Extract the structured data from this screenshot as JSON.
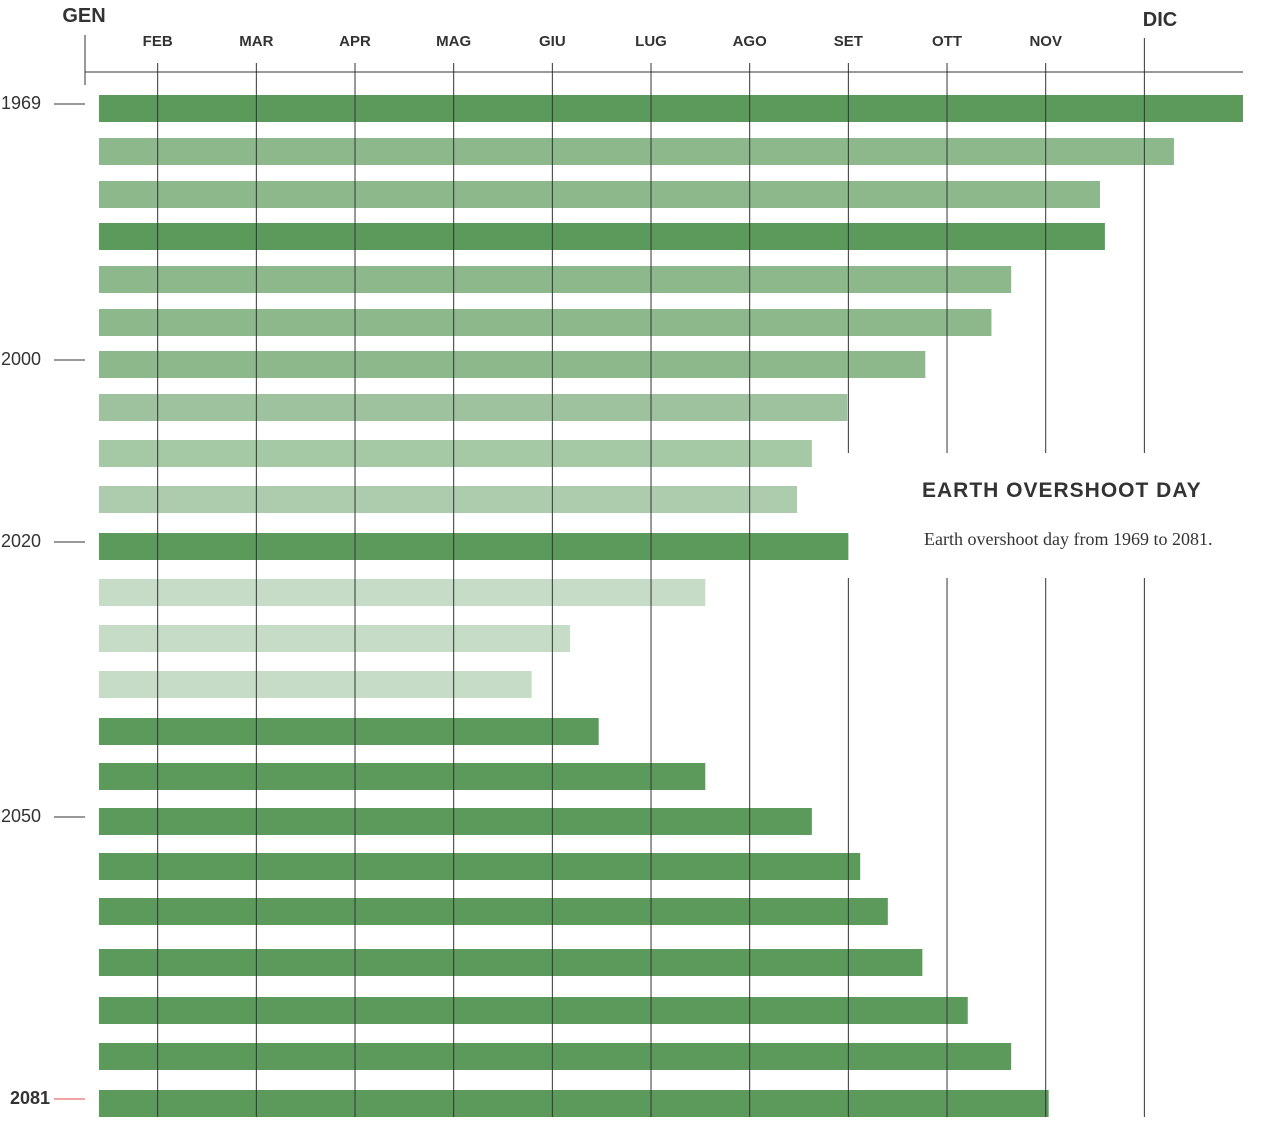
{
  "chart_data": {
    "type": "bar",
    "orientation": "horizontal",
    "title": "EARTH OVERSHOOT DAY",
    "subtitle": "Earth overshoot day from 1969 to 2081.",
    "x_axis": {
      "label_start": "GEN",
      "label_end": "DIC",
      "months": [
        "FEB",
        "MAR",
        "APR",
        "MAG",
        "GIU",
        "LUG",
        "AGO",
        "SET",
        "OTT",
        "NOV"
      ],
      "unit": "months into year",
      "range": [
        0,
        12
      ]
    },
    "year_labels": [
      {
        "row": 0,
        "text": "1969",
        "highlight": false
      },
      {
        "row": 6,
        "text": "2000",
        "highlight": false
      },
      {
        "row": 10,
        "text": "2020",
        "highlight": false
      },
      {
        "row": 16,
        "text": "2050",
        "highlight": false
      },
      {
        "row": 22,
        "text": "2081",
        "highlight": true
      }
    ],
    "bars": [
      {
        "value": 12.0,
        "shade": 1.0
      },
      {
        "value": 11.3,
        "shade": 0.7
      },
      {
        "value": 10.55,
        "shade": 0.7
      },
      {
        "value": 10.6,
        "shade": 1.0
      },
      {
        "value": 9.65,
        "shade": 0.7
      },
      {
        "value": 9.45,
        "shade": 0.7
      },
      {
        "value": 8.78,
        "shade": 0.7
      },
      {
        "value": 7.99,
        "shade": 0.6
      },
      {
        "value": 7.63,
        "shade": 0.55
      },
      {
        "value": 7.48,
        "shade": 0.5
      },
      {
        "value": 8.0,
        "shade": 1.0
      },
      {
        "value": 6.55,
        "shade": 0.35
      },
      {
        "value": 5.18,
        "shade": 0.35
      },
      {
        "value": 4.79,
        "shade": 0.35
      },
      {
        "value": 5.47,
        "shade": 1.0
      },
      {
        "value": 6.55,
        "shade": 1.0
      },
      {
        "value": 7.63,
        "shade": 1.0
      },
      {
        "value": 8.12,
        "shade": 1.0
      },
      {
        "value": 8.4,
        "shade": 1.0
      },
      {
        "value": 8.75,
        "shade": 1.0
      },
      {
        "value": 9.21,
        "shade": 1.0
      },
      {
        "value": 9.65,
        "shade": 1.0
      },
      {
        "value": 10.03,
        "shade": 1.0
      }
    ],
    "colors": {
      "bar": "#5b9a5b",
      "axis": "#333333",
      "text": "#333333",
      "highlight_year": "#e04848"
    }
  }
}
